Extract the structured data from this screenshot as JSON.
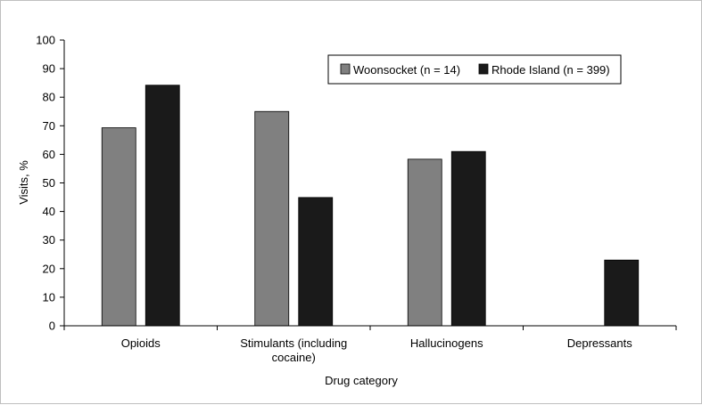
{
  "chart_data": {
    "type": "bar",
    "categories": [
      "Opioids",
      "Stimulants (including cocaine)",
      "Hallucinogens",
      "Depressants"
    ],
    "category_lines": [
      [
        "Opioids"
      ],
      [
        "Stimulants (including",
        "cocaine)"
      ],
      [
        "Hallucinogens"
      ],
      [
        "Depressants"
      ]
    ],
    "series": [
      {
        "name": "Woonsocket (n = 14)",
        "color": "#808080",
        "values": [
          69.3,
          75.0,
          58.3,
          null
        ]
      },
      {
        "name": "Rhode Island (n = 399)",
        "color": "#1a1a1a",
        "values": [
          84.2,
          44.9,
          61.0,
          23.0
        ]
      }
    ],
    "xlabel": "Drug category",
    "ylabel": "Visits, %",
    "ylim": [
      0,
      100
    ],
    "yticks": [
      0,
      10,
      20,
      30,
      40,
      50,
      60,
      70,
      80,
      90,
      100
    ],
    "grid": false,
    "legend_position": "top-right"
  }
}
